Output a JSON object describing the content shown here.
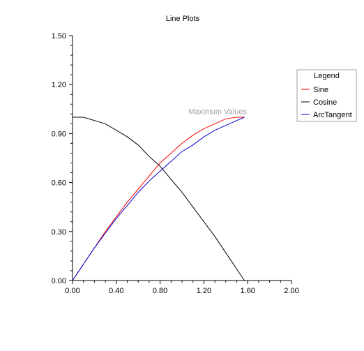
{
  "chart_data": {
    "type": "line",
    "title": "Line Plots",
    "xlabel": "",
    "ylabel": "",
    "xlim": [
      0,
      2
    ],
    "ylim": [
      0,
      1.5
    ],
    "x_ticks": [
      "0.00",
      "0.40",
      "0.80",
      "1.20",
      "1.60",
      "2.00"
    ],
    "y_ticks": [
      "0.00",
      "0.30",
      "0.60",
      "0.90",
      "1.20",
      "1.50"
    ],
    "legend": {
      "title": "Legend",
      "placement": "right"
    },
    "annotation": {
      "text": "Maximum Values",
      "x": 1.06,
      "y": 1.02
    },
    "series": [
      {
        "name": "Sine",
        "color": "#ff0000",
        "x": [
          0,
          0.1,
          0.2,
          0.3,
          0.4,
          0.5,
          0.6,
          0.7,
          0.8,
          0.9,
          1.0,
          1.1,
          1.2,
          1.3,
          1.4,
          1.5,
          1.57
        ],
        "y": [
          0,
          0.1,
          0.2,
          0.3,
          0.39,
          0.48,
          0.56,
          0.64,
          0.72,
          0.78,
          0.84,
          0.89,
          0.93,
          0.96,
          0.99,
          1.0,
          1.0
        ]
      },
      {
        "name": "Cosine",
        "color": "#000000",
        "x": [
          0,
          0.1,
          0.2,
          0.3,
          0.4,
          0.5,
          0.6,
          0.7,
          0.8,
          0.9,
          1.0,
          1.1,
          1.2,
          1.3,
          1.4,
          1.5,
          1.57
        ],
        "y": [
          1.0,
          1.0,
          0.98,
          0.96,
          0.92,
          0.88,
          0.83,
          0.76,
          0.7,
          0.62,
          0.54,
          0.45,
          0.36,
          0.27,
          0.17,
          0.07,
          0.0
        ]
      },
      {
        "name": "ArcTangent",
        "color": "#0000cc",
        "x": [
          0,
          0.1,
          0.2,
          0.3,
          0.4,
          0.5,
          0.6,
          0.7,
          0.8,
          0.9,
          1.0,
          1.1,
          1.2,
          1.3,
          1.4,
          1.5,
          1.57
        ],
        "y": [
          0,
          0.1,
          0.2,
          0.29,
          0.38,
          0.46,
          0.54,
          0.61,
          0.67,
          0.73,
          0.79,
          0.83,
          0.88,
          0.92,
          0.95,
          0.98,
          1.0
        ]
      }
    ]
  }
}
